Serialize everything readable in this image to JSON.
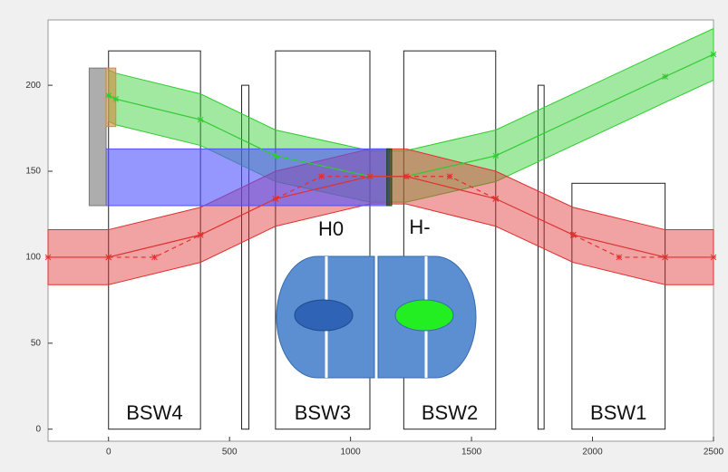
{
  "chart_data": {
    "type": "line",
    "xlim": [
      -250,
      2500
    ],
    "ylim": [
      -7,
      238
    ],
    "xticks": [
      0,
      500,
      1000,
      1500,
      2000,
      2500
    ],
    "yticks": [
      0,
      50,
      100,
      150,
      200
    ],
    "magnets": [
      {
        "name": "BSW4",
        "x": [
          0,
          380
        ],
        "y": [
          0,
          220
        ]
      },
      {
        "x": [
          550,
          580
        ],
        "y": [
          0,
          200
        ]
      },
      {
        "name": "BSW3",
        "x": [
          690,
          1080
        ],
        "y": [
          0,
          220
        ]
      },
      {
        "name": "BSW2",
        "x": [
          1220,
          1600
        ],
        "y": [
          0,
          220
        ]
      },
      {
        "x": [
          1775,
          1800
        ],
        "y": [
          0,
          200
        ]
      },
      {
        "name": "BSW1",
        "x": [
          1915,
          2300
        ],
        "y": [
          0,
          143
        ]
      }
    ],
    "boxes": [
      {
        "x": [
          -10,
          1160
        ],
        "y": [
          130,
          163
        ],
        "color": "#5050ff"
      },
      {
        "x": [
          -80,
          -10
        ],
        "y": [
          130,
          210
        ],
        "color": "#777777"
      },
      {
        "x": [
          -10,
          30
        ],
        "y": [
          176,
          210
        ],
        "color": "#d08a40"
      },
      {
        "x": [
          1150,
          1170
        ],
        "y": [
          130,
          163
        ],
        "color": "#1d3f25"
      }
    ],
    "series": [
      {
        "color": "#2fcc2f",
        "band": 15,
        "dashed": false,
        "x": [
          0,
          30,
          380,
          690,
          1080,
          1230,
          1600,
          2300,
          2500
        ],
        "values": [
          194,
          192,
          180,
          159,
          147,
          147,
          159,
          205,
          218
        ]
      },
      {
        "color": "#e03030",
        "band": 16,
        "dashed": false,
        "x": [
          -250,
          0,
          380,
          690,
          1080,
          1230,
          1600,
          1920,
          2300,
          2500
        ],
        "values": [
          100,
          100,
          113,
          134,
          147,
          147,
          134,
          113,
          100,
          100
        ]
      },
      {
        "color": "#e03030",
        "dashed": true,
        "x": [
          0,
          190,
          380,
          null,
          690,
          880,
          1080,
          null,
          1230,
          1410,
          1600,
          null,
          1920,
          2110,
          2300
        ],
        "values": [
          100,
          100,
          113,
          null,
          134,
          147,
          147,
          null,
          147,
          147,
          134,
          null,
          113,
          100,
          100
        ]
      }
    ],
    "annotations": [
      "H0",
      "H-"
    ]
  }
}
